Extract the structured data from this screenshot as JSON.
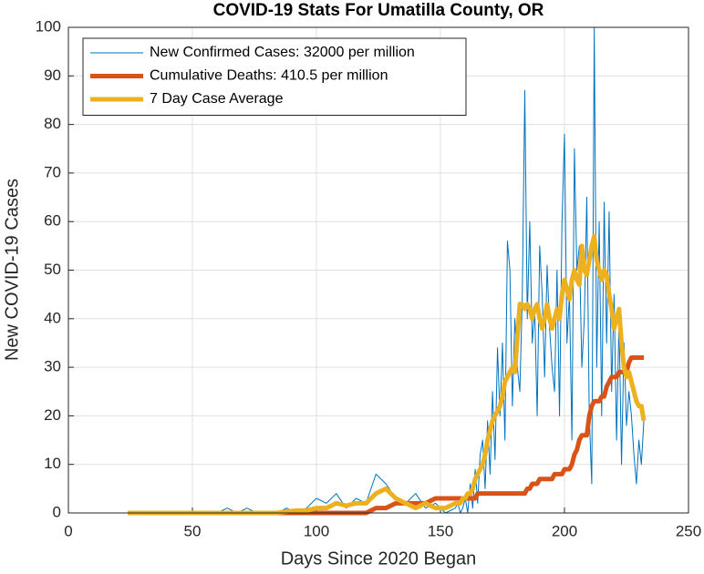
{
  "chart_data": {
    "type": "line",
    "title": "COVID-19 Stats For Umatilla County, OR",
    "xlabel": "Days Since 2020 Began",
    "ylabel": "New COVID-19 Cases",
    "xlim": [
      0,
      250
    ],
    "ylim": [
      0,
      100
    ],
    "xticks": [
      0,
      50,
      100,
      150,
      200,
      250
    ],
    "yticks": [
      0,
      10,
      20,
      30,
      40,
      50,
      60,
      70,
      80,
      90,
      100
    ],
    "grid": true,
    "legend": "upper left",
    "x": [
      24,
      28,
      32,
      36,
      40,
      44,
      48,
      52,
      56,
      60,
      64,
      68,
      72,
      76,
      80,
      84,
      88,
      92,
      96,
      100,
      104,
      108,
      112,
      116,
      120,
      124,
      128,
      132,
      136,
      140,
      144,
      148,
      152,
      156,
      157,
      158,
      159,
      160,
      161,
      162,
      163,
      164,
      165,
      166,
      167,
      168,
      169,
      170,
      171,
      172,
      173,
      174,
      175,
      176,
      177,
      178,
      179,
      180,
      181,
      182,
      183,
      184,
      185,
      186,
      187,
      188,
      189,
      190,
      191,
      192,
      193,
      194,
      195,
      196,
      197,
      198,
      199,
      200,
      201,
      202,
      203,
      204,
      205,
      206,
      207,
      208,
      209,
      210,
      211,
      212,
      213,
      214,
      215,
      216,
      217,
      218,
      219,
      220,
      221,
      222,
      223,
      224,
      225,
      226,
      227,
      228,
      229,
      230,
      231,
      232
    ],
    "series": [
      {
        "name": "New Confirmed Cases: 32000 per million",
        "color": "#0072BD",
        "width": 1,
        "values": [
          0,
          0,
          0,
          0,
          0,
          0,
          0,
          0,
          0,
          0,
          1,
          0,
          1,
          0,
          0,
          0,
          1,
          0,
          1,
          3,
          2,
          4,
          1,
          3,
          2,
          8,
          6,
          3,
          2,
          4,
          1,
          2,
          0,
          1,
          2,
          0,
          1,
          3,
          0,
          6,
          1,
          9,
          2,
          12,
          15,
          5,
          19,
          8,
          25,
          11,
          34,
          20,
          35,
          15,
          56,
          50,
          22,
          40,
          30,
          25,
          45,
          87,
          40,
          60,
          35,
          42,
          20,
          55,
          45,
          28,
          51,
          38,
          30,
          25,
          50,
          20,
          60,
          78,
          35,
          45,
          15,
          75,
          50,
          55,
          30,
          40,
          65,
          20,
          6,
          100,
          30,
          60,
          20,
          64,
          35,
          62,
          25,
          45,
          15,
          40,
          10,
          35,
          18,
          25,
          20,
          12,
          6,
          15,
          10,
          19
        ]
      },
      {
        "name": "Cumulative Deaths: 410.5 per million",
        "color": "#D95319",
        "width": 5,
        "values": [
          0,
          0,
          0,
          0,
          0,
          0,
          0,
          0,
          0,
          0,
          0,
          0,
          0,
          0,
          0,
          0,
          0,
          0,
          0,
          0,
          0,
          0,
          0,
          0,
          0,
          1,
          1,
          2,
          2,
          2,
          2,
          3,
          3,
          3,
          3,
          3,
          3,
          3,
          3,
          3,
          3,
          3,
          4,
          4,
          4,
          4,
          4,
          4,
          4,
          4,
          4,
          4,
          4,
          4,
          4,
          4,
          4,
          4,
          4,
          4,
          4,
          4,
          5,
          5,
          6,
          6,
          6,
          7,
          7,
          7,
          7,
          7,
          7,
          8,
          8,
          8,
          8,
          9,
          9,
          9,
          10,
          12,
          13,
          15,
          16,
          16,
          16,
          20,
          22,
          23,
          23,
          23,
          24,
          24,
          26,
          27,
          28,
          28,
          28,
          29,
          29,
          29,
          29,
          31,
          32,
          32,
          32,
          32,
          32,
          32
        ]
      },
      {
        "name": "7 Day Case Average",
        "color": "#EDB120",
        "width": 5,
        "values": [
          0,
          0,
          0,
          0,
          0,
          0,
          0,
          0,
          0,
          0,
          0,
          0,
          0,
          0,
          0,
          0,
          0.3,
          0.5,
          0.5,
          1,
          1,
          2,
          1.5,
          2,
          2,
          4,
          5,
          3,
          2,
          1,
          2,
          1,
          1,
          2,
          2,
          2,
          3,
          3,
          4,
          4,
          5,
          7,
          8,
          9,
          10,
          12,
          15,
          17,
          19,
          20,
          21,
          22,
          24,
          27,
          28,
          29,
          30,
          29,
          36,
          43,
          43,
          42,
          43,
          42,
          40,
          42,
          43,
          40,
          38,
          40,
          43,
          40,
          38,
          40,
          42,
          40,
          45,
          48,
          46,
          44,
          48,
          50,
          48,
          47,
          55,
          50,
          49,
          52,
          55,
          57,
          52,
          50,
          48,
          50,
          49,
          45,
          42,
          38,
          40,
          42,
          35,
          30,
          28,
          29,
          27,
          25,
          23,
          22,
          22,
          19
        ]
      }
    ]
  }
}
